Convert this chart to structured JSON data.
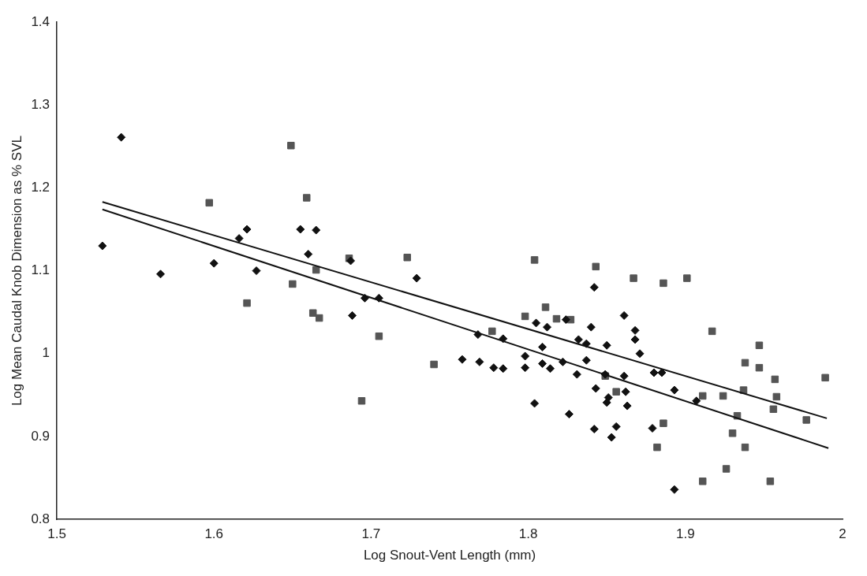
{
  "chart_data": {
    "type": "scatter",
    "xlabel": "Log Snout-Vent Length (mm)",
    "ylabel": "Log Mean Caudal Knob Dimension as % SVL",
    "xlim": [
      1.5,
      2
    ],
    "xticks": [
      1.5,
      1.6,
      1.7,
      1.8,
      1.9,
      2
    ],
    "ylim": [
      0.8,
      1.4
    ],
    "yticks": [
      0.8,
      0.9,
      1,
      1.1,
      1.2,
      1.3,
      1.4
    ],
    "grid": false,
    "legend": false,
    "series": [
      {
        "type": "scatter",
        "marker": "diamond",
        "color": "#111111",
        "x": [
          1.541,
          1.529,
          1.566,
          1.6,
          1.616,
          1.621,
          1.627,
          1.655,
          1.665,
          1.66,
          1.687,
          1.729,
          1.696,
          1.705,
          1.688,
          1.842,
          1.861,
          1.868,
          1.868,
          1.871,
          1.84,
          1.805,
          1.812,
          1.824,
          1.768,
          1.784,
          1.832,
          1.837,
          1.85,
          1.809,
          1.758,
          1.769,
          1.778,
          1.784,
          1.798,
          1.798,
          1.809,
          1.814,
          1.822,
          1.837,
          1.831,
          1.861,
          1.88,
          1.885,
          1.893,
          1.907,
          1.849,
          1.843,
          1.851,
          1.862,
          1.863,
          1.85,
          1.804,
          1.826,
          1.842,
          1.856,
          1.853,
          1.879,
          1.893
        ],
        "values": [
          1.261,
          1.13,
          1.096,
          1.109,
          1.139,
          1.15,
          1.1,
          1.15,
          1.149,
          1.12,
          1.112,
          1.091,
          1.067,
          1.067,
          1.046,
          1.08,
          1.046,
          1.028,
          1.017,
          1,
          1.032,
          1.037,
          1.032,
          1.041,
          1.023,
          1.018,
          1.017,
          1.012,
          1.01,
          1.008,
          0.993,
          0.99,
          0.983,
          0.982,
          0.997,
          0.983,
          0.988,
          0.982,
          0.99,
          0.992,
          0.975,
          0.973,
          0.977,
          0.977,
          0.956,
          0.943,
          0.975,
          0.958,
          0.947,
          0.954,
          0.937,
          0.941,
          0.94,
          0.927,
          0.909,
          0.912,
          0.899,
          0.91,
          0.836
        ]
      },
      {
        "type": "scatter",
        "marker": "square",
        "color": "#555555",
        "x": [
          1.649,
          1.597,
          1.659,
          1.686,
          1.723,
          1.65,
          1.621,
          1.663,
          1.667,
          1.705,
          1.74,
          1.694,
          1.665,
          1.804,
          1.843,
          1.867,
          1.886,
          1.901,
          1.811,
          1.798,
          1.818,
          1.827,
          1.917,
          1.947,
          1.938,
          1.947,
          1.957,
          1.989,
          1.777,
          1.937,
          1.958,
          1.956,
          1.977,
          1.933,
          1.93,
          1.911,
          1.924,
          1.938,
          1.886,
          1.882,
          1.926,
          1.911,
          1.954,
          1.856,
          1.849
        ],
        "values": [
          1.251,
          1.182,
          1.188,
          1.115,
          1.116,
          1.084,
          1.061,
          1.049,
          1.043,
          1.021,
          0.987,
          0.943,
          1.101,
          1.113,
          1.105,
          1.091,
          1.085,
          1.091,
          1.056,
          1.045,
          1.042,
          1.041,
          1.027,
          1.01,
          0.989,
          0.983,
          0.969,
          0.971,
          1.027,
          0.956,
          0.948,
          0.933,
          0.92,
          0.925,
          0.904,
          0.949,
          0.949,
          0.887,
          0.916,
          0.887,
          0.861,
          0.846,
          0.846,
          0.954,
          0.973
        ]
      },
      {
        "type": "line",
        "color": "#111111",
        "x": [
          1.529,
          1.991
        ],
        "values": [
          1.174,
          0.886
        ]
      },
      {
        "type": "line",
        "color": "#111111",
        "x": [
          1.529,
          1.99
        ],
        "values": [
          1.183,
          0.922
        ]
      }
    ]
  }
}
